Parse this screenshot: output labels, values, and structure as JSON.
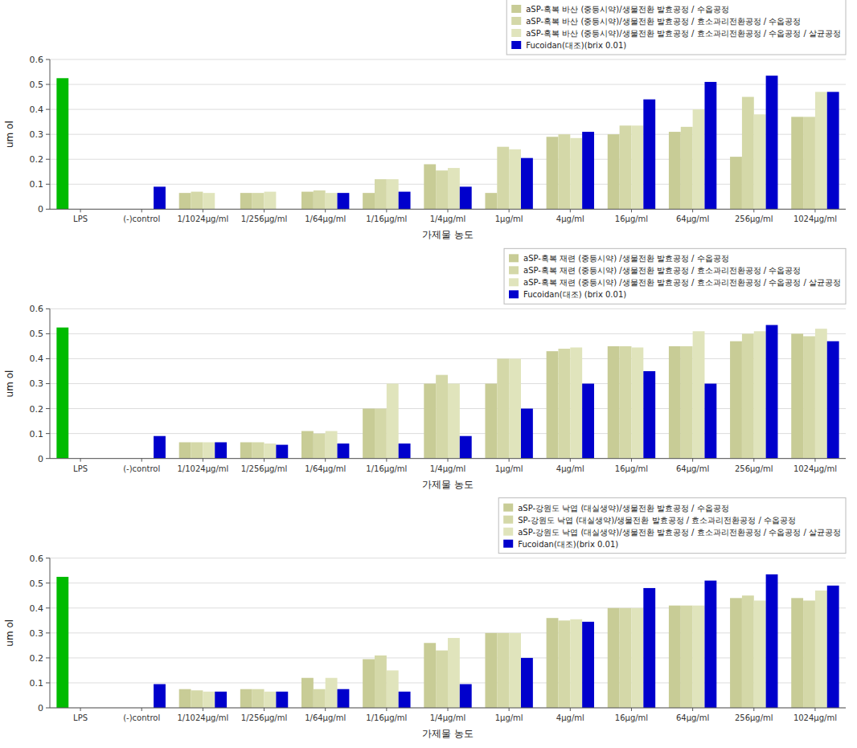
{
  "chart_data": [
    {
      "type": "bar",
      "categories": [
        "LPS",
        "(-)control",
        "1/1024μg/ml",
        "1/256μg/ml",
        "1/64μg/ml",
        "1/16μg/ml",
        "1/4μg/ml",
        "1μg/ml",
        "4μg/ml",
        "16μg/ml",
        "64μg/ml",
        "256μg/ml",
        "1024μg/ml"
      ],
      "xlabel": "가제물 농도",
      "ylabel": "um ol",
      "ylim": [
        0,
        0.6
      ],
      "yticks": [
        0,
        0.1,
        0.2,
        0.3,
        0.4,
        0.5,
        0.6
      ],
      "grid": true,
      "legend": "upper right",
      "series": [
        {
          "name": "aSP-혹복 바산 (중등시약)/생물전환 발효공정 / 수옵공정",
          "color": "#c8cc96",
          "colors": [
            "#00bb00",
            "#c8cc96",
            "#c8cc96",
            "#c8cc96",
            "#c8cc96",
            "#c8cc96",
            "#c8cc96",
            "#c8cc96",
            "#c8cc96",
            "#c8cc96",
            "#c8cc96",
            "#c8cc96",
            "#c8cc96"
          ],
          "values": [
            0.525,
            0.0,
            0.065,
            0.065,
            0.07,
            0.065,
            0.18,
            0.065,
            0.29,
            0.3,
            0.31,
            0.21,
            0.37
          ]
        },
        {
          "name": "aSP-혹복 바산 (중등시약)/생물전환 발효공정 / 효소과리전환공정 / 수옵공정",
          "color": "#d4d8a8",
          "values": [
            0.0,
            0.0,
            0.07,
            0.065,
            0.075,
            0.12,
            0.155,
            0.25,
            0.3,
            0.335,
            0.33,
            0.45,
            0.37
          ]
        },
        {
          "name": "aSP-혹복 바산 (중등시약)/생물전환 발효공정 / 효소과리전환공정 / 수옵공정 / 살균공정",
          "color": "#e0e4bc",
          "values": [
            0.0,
            0.0,
            0.065,
            0.07,
            0.065,
            0.12,
            0.165,
            0.24,
            0.285,
            0.335,
            0.4,
            0.38,
            0.47
          ]
        },
        {
          "name": "Fucoidan(대조)(brix 0.01)",
          "color": "#0000cc",
          "values": [
            0.0,
            0.09,
            0.0,
            0.0,
            0.065,
            0.07,
            0.09,
            0.205,
            0.31,
            0.44,
            0.51,
            0.535,
            0.47
          ]
        }
      ]
    },
    {
      "type": "bar",
      "categories": [
        "LPS",
        "(-)control",
        "1/1024μg/ml",
        "1/256μg/ml",
        "1/64μg/ml",
        "1/16μg/ml",
        "1/4μg/ml",
        "1μg/ml",
        "4μg/ml",
        "16μg/ml",
        "64μg/ml",
        "256μg/ml",
        "1024μg/ml"
      ],
      "xlabel": "가제물 농도",
      "ylabel": "um ol",
      "ylim": [
        0,
        0.6
      ],
      "yticks": [
        0,
        0.1,
        0.2,
        0.3,
        0.4,
        0.5,
        0.6
      ],
      "grid": true,
      "legend": "upper right",
      "series": [
        {
          "name": "aSP-혹복 재련 (중등시약) /생물전환 발효공정 / 수옵공정",
          "color": "#c8cc96",
          "colors": [
            "#00bb00",
            "#c8cc96",
            "#c8cc96",
            "#c8cc96",
            "#c8cc96",
            "#c8cc96",
            "#c8cc96",
            "#c8cc96",
            "#c8cc96",
            "#c8cc96",
            "#c8cc96",
            "#c8cc96",
            "#c8cc96"
          ],
          "values": [
            0.525,
            0.0,
            0.065,
            0.065,
            0.11,
            0.2,
            0.3,
            0.3,
            0.43,
            0.45,
            0.45,
            0.47,
            0.5
          ]
        },
        {
          "name": "aSP-혹복 재련 (중등시약) /생물전환 발효공정 / 효소과리전환공정 / 수옵공정",
          "color": "#d4d8a8",
          "values": [
            0.0,
            0.0,
            0.065,
            0.065,
            0.1,
            0.2,
            0.335,
            0.4,
            0.44,
            0.45,
            0.45,
            0.5,
            0.49
          ]
        },
        {
          "name": "aSP-혹복 재련 (중등시약) /생물전환 발효공정 / 효소과리전환공정 / 수옵공정 / 살균공정",
          "color": "#e0e4bc",
          "values": [
            0.0,
            0.0,
            0.065,
            0.06,
            0.11,
            0.3,
            0.3,
            0.4,
            0.445,
            0.445,
            0.51,
            0.51,
            0.52
          ]
        },
        {
          "name": "Fucoidan(대조) (brix 0.01)",
          "color": "#0000cc",
          "values": [
            0.0,
            0.09,
            0.065,
            0.055,
            0.06,
            0.06,
            0.09,
            0.2,
            0.3,
            0.35,
            0.3,
            0.535,
            0.47
          ]
        }
      ]
    },
    {
      "type": "bar",
      "categories": [
        "LPS",
        "(-)control",
        "1/1024μg/ml",
        "1/256μg/ml",
        "1/64μg/ml",
        "1/16μg/ml",
        "1/4μg/ml",
        "1μg/ml",
        "4μg/ml",
        "16μg/ml",
        "64μg/ml",
        "256μg/ml",
        "1024μg/ml"
      ],
      "xlabel": "가제물 농도",
      "ylabel": "um ol",
      "ylim": [
        0,
        0.6
      ],
      "yticks": [
        0,
        0.1,
        0.2,
        0.3,
        0.4,
        0.5,
        0.6
      ],
      "grid": true,
      "legend": "upper right",
      "series": [
        {
          "name": "aSP-강원도 낙엽 (대실생약)/생물전환 발효공정 / 수옵공정",
          "color": "#c8cc96",
          "colors": [
            "#00bb00",
            "#c8cc96",
            "#c8cc96",
            "#c8cc96",
            "#c8cc96",
            "#c8cc96",
            "#c8cc96",
            "#c8cc96",
            "#c8cc96",
            "#c8cc96",
            "#c8cc96",
            "#c8cc96",
            "#c8cc96"
          ],
          "values": [
            0.525,
            0.0,
            0.075,
            0.075,
            0.12,
            0.195,
            0.26,
            0.3,
            0.36,
            0.4,
            0.41,
            0.44,
            0.44
          ]
        },
        {
          "name": "SP-강원도 낙엽 (대실생약)/생물전환 발효공정 / 효소과리전환공정 / 수옵공정",
          "color": "#d4d8a8",
          "values": [
            0.0,
            0.0,
            0.07,
            0.075,
            0.075,
            0.21,
            0.23,
            0.3,
            0.35,
            0.4,
            0.41,
            0.45,
            0.43
          ]
        },
        {
          "name": "aSP-강원도 낙엽 (대실생약)/생물전환 발효공정 / 효소과리전환공정 / 수옵공정 / 살균공정",
          "color": "#e0e4bc",
          "values": [
            0.0,
            0.0,
            0.065,
            0.065,
            0.12,
            0.15,
            0.28,
            0.3,
            0.355,
            0.4,
            0.41,
            0.43,
            0.47
          ]
        },
        {
          "name": "Fucoidan(대조)(brix 0.01)",
          "color": "#0000cc",
          "values": [
            0.0,
            0.095,
            0.065,
            0.065,
            0.075,
            0.065,
            0.095,
            0.2,
            0.345,
            0.48,
            0.51,
            0.535,
            0.49
          ]
        }
      ]
    }
  ]
}
